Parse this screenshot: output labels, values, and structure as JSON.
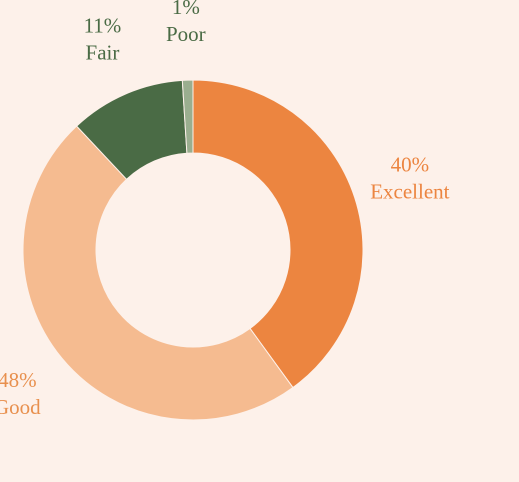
{
  "chart_data": {
    "type": "donut",
    "categories": [
      "Excellent",
      "Good",
      "Fair",
      "Poor"
    ],
    "values": [
      40,
      48,
      11,
      1
    ],
    "value_labels": [
      "40%",
      "48%",
      "11%",
      "1%"
    ],
    "colors": [
      "#ec8540",
      "#f5bb90",
      "#4a6b45",
      "#9aae8f"
    ],
    "label_colors": [
      "#ec8540",
      "#e8904e",
      "#4a6b45",
      "#4a6b45"
    ]
  }
}
